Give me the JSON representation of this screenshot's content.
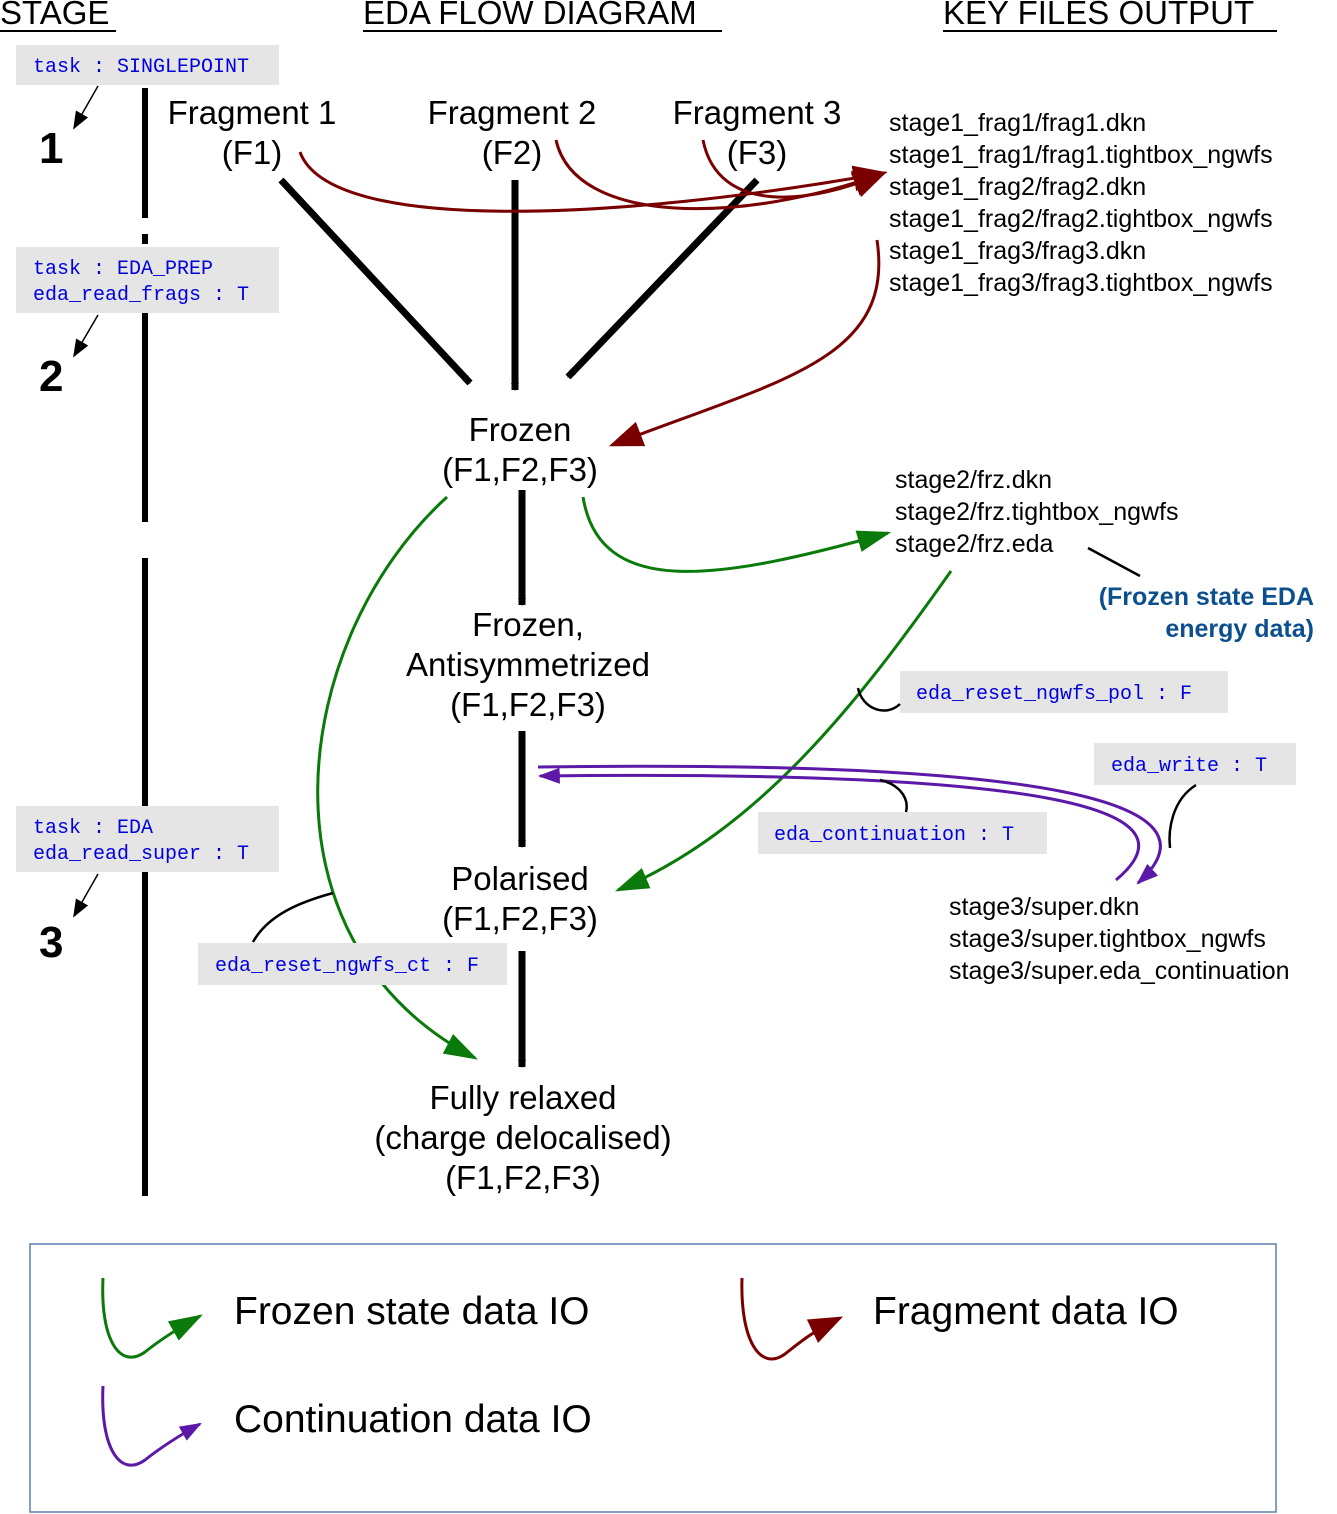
{
  "headers": {
    "stage": "STAGE",
    "diagram": "EDA FLOW DIAGRAM",
    "files": "KEY FILES OUTPUT"
  },
  "stages": [
    {
      "number": "1",
      "settings": [
        "task : SINGLEPOINT"
      ]
    },
    {
      "number": "2",
      "settings": [
        "task : EDA_PREP",
        "eda_read_frags : T"
      ]
    },
    {
      "number": "3",
      "settings": [
        "task : EDA",
        "eda_read_super : T"
      ]
    }
  ],
  "nodes": {
    "fragment1": [
      "Fragment 1",
      "(F1)"
    ],
    "fragment2": [
      "Fragment 2",
      "(F2)"
    ],
    "fragment3": [
      "Fragment 3",
      "(F3)"
    ],
    "frozen": [
      "Frozen",
      "(F1,F2,F3)"
    ],
    "frozen_antisym": [
      "Frozen,",
      "Antisymmetrized",
      "(F1,F2,F3)"
    ],
    "polarised": [
      "Polarised",
      "(F1,F2,F3)"
    ],
    "fully_relaxed": [
      "Fully relaxed",
      "(charge delocalised)",
      "(F1,F2,F3)"
    ]
  },
  "files": {
    "stage1": [
      "stage1_frag1/frag1.dkn",
      "stage1_frag1/frag1.tightbox_ngwfs",
      "stage1_frag2/frag2.dkn",
      "stage1_frag2/frag2.tightbox_ngwfs",
      "stage1_frag3/frag3.dkn",
      "stage1_frag3/frag3.tightbox_ngwfs"
    ],
    "stage2": [
      "stage2/frz.dkn",
      "stage2/frz.tightbox_ngwfs",
      "stage2/frz.eda"
    ],
    "stage3": [
      "stage3/super.dkn",
      "stage3/super.tightbox_ngwfs",
      "stage3/super.eda_continuation"
    ]
  },
  "note": [
    "(Frozen state EDA",
    "energy data)"
  ],
  "keywords": {
    "reset_pol": "eda_reset_ngwfs_pol : F",
    "write": "eda_write : T",
    "continuation": "eda_continuation : T",
    "reset_ct": "eda_reset_ngwfs_ct : F"
  },
  "legend": {
    "frozen": "Frozen state data IO",
    "fragment": "Fragment data IO",
    "continuation": "Continuation data IO"
  },
  "colors": {
    "frozen_io": "#0a7a0a",
    "fragment_io": "#7a0000",
    "continuation_io": "#5c18a6",
    "code_text": "#0000dd",
    "note_text": "#0b4f8f",
    "code_bg": "#e5e5e5",
    "legend_border": "#5a7ea8"
  }
}
